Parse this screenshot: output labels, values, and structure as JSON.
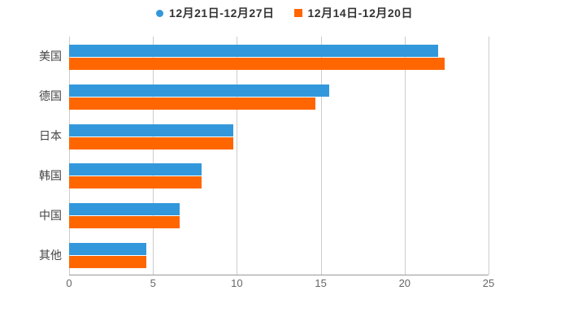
{
  "chart_data": {
    "type": "bar",
    "orientation": "horizontal",
    "title": "",
    "xlabel": "",
    "ylabel": "",
    "categories": [
      "美国",
      "德国",
      "日本",
      "韩国",
      "中国",
      "其他"
    ],
    "series": [
      {
        "name": "12月21日-12月27日",
        "color": "#3398DB",
        "marker": "circle",
        "values": [
          22.0,
          15.5,
          9.8,
          7.9,
          6.6,
          4.6
        ]
      },
      {
        "name": "12月14日-12月20日",
        "color": "#FF6600",
        "marker": "square",
        "values": [
          22.4,
          14.7,
          9.8,
          7.9,
          6.6,
          4.6
        ]
      }
    ],
    "xlim": [
      0,
      25
    ],
    "xticks": [
      0,
      5,
      10,
      15,
      20,
      25
    ],
    "grid": "vertical-only",
    "legend_position": "top-center"
  },
  "legend": {
    "items": [
      {
        "label": "12月21日-12月27日",
        "color": "#3398DB",
        "shape": "circle"
      },
      {
        "label": "12月14日-12月20日",
        "color": "#FF6600",
        "shape": "square"
      }
    ]
  },
  "colors": {
    "background": "#ffffff",
    "gridline": "#cccccc",
    "axis_line": "#999999",
    "tick_text": "#666666",
    "category_text": "#444444",
    "legend_text": "#333333"
  }
}
